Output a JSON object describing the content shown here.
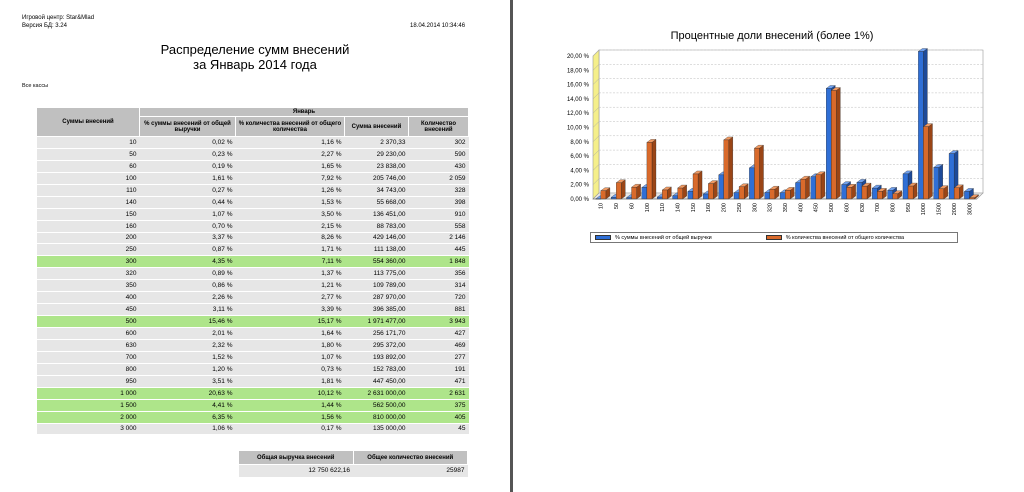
{
  "header": {
    "center": "Игровой центр: Star&Mlad",
    "db_version": "Версия БД: 3.24",
    "datetime": "18.04.2014 10:34:46"
  },
  "report": {
    "title_line1": "Распределение сумм внесений",
    "title_line2": "за Январь 2014 года",
    "scope": "Все кассы"
  },
  "table": {
    "col_sum_label": "Суммы внесений",
    "group_label": "Январь",
    "col_pct_revenue": "% суммы внесений от общей выручки",
    "col_pct_count": "% количества внесений от общего количества",
    "col_sum": "Сумма внесений",
    "col_count": "Количество внесений",
    "rows": [
      {
        "amount": "10",
        "pct_rev": "0,02 %",
        "pct_cnt": "1,16 %",
        "sum": "2 370,33",
        "count": "302",
        "hl": false
      },
      {
        "amount": "50",
        "pct_rev": "0,23 %",
        "pct_cnt": "2,27 %",
        "sum": "29 230,00",
        "count": "590",
        "hl": false
      },
      {
        "amount": "60",
        "pct_rev": "0,19 %",
        "pct_cnt": "1,65 %",
        "sum": "23 838,00",
        "count": "430",
        "hl": false
      },
      {
        "amount": "100",
        "pct_rev": "1,61 %",
        "pct_cnt": "7,92 %",
        "sum": "205 746,00",
        "count": "2 059",
        "hl": false
      },
      {
        "amount": "110",
        "pct_rev": "0,27 %",
        "pct_cnt": "1,26 %",
        "sum": "34 743,00",
        "count": "328",
        "hl": false
      },
      {
        "amount": "140",
        "pct_rev": "0,44 %",
        "pct_cnt": "1,53 %",
        "sum": "55 668,00",
        "count": "398",
        "hl": false
      },
      {
        "amount": "150",
        "pct_rev": "1,07 %",
        "pct_cnt": "3,50 %",
        "sum": "136 451,00",
        "count": "910",
        "hl": false
      },
      {
        "amount": "160",
        "pct_rev": "0,70 %",
        "pct_cnt": "2,15 %",
        "sum": "88 783,00",
        "count": "558",
        "hl": false
      },
      {
        "amount": "200",
        "pct_rev": "3,37 %",
        "pct_cnt": "8,26 %",
        "sum": "429 146,00",
        "count": "2 146",
        "hl": false
      },
      {
        "amount": "250",
        "pct_rev": "0,87 %",
        "pct_cnt": "1,71 %",
        "sum": "111 138,00",
        "count": "445",
        "hl": false
      },
      {
        "amount": "300",
        "pct_rev": "4,35 %",
        "pct_cnt": "7,11 %",
        "sum": "554 360,00",
        "count": "1 848",
        "hl": true
      },
      {
        "amount": "320",
        "pct_rev": "0,89 %",
        "pct_cnt": "1,37 %",
        "sum": "113 775,00",
        "count": "356",
        "hl": false
      },
      {
        "amount": "350",
        "pct_rev": "0,86 %",
        "pct_cnt": "1,21 %",
        "sum": "109 789,00",
        "count": "314",
        "hl": false
      },
      {
        "amount": "400",
        "pct_rev": "2,26 %",
        "pct_cnt": "2,77 %",
        "sum": "287 970,00",
        "count": "720",
        "hl": false
      },
      {
        "amount": "450",
        "pct_rev": "3,11 %",
        "pct_cnt": "3,39 %",
        "sum": "396 385,00",
        "count": "881",
        "hl": false
      },
      {
        "amount": "500",
        "pct_rev": "15,46 %",
        "pct_cnt": "15,17 %",
        "sum": "1 971 477,00",
        "count": "3 943",
        "hl": true
      },
      {
        "amount": "600",
        "pct_rev": "2,01 %",
        "pct_cnt": "1,64 %",
        "sum": "256 171,70",
        "count": "427",
        "hl": false
      },
      {
        "amount": "630",
        "pct_rev": "2,32 %",
        "pct_cnt": "1,80 %",
        "sum": "295 372,00",
        "count": "469",
        "hl": false
      },
      {
        "amount": "700",
        "pct_rev": "1,52 %",
        "pct_cnt": "1,07 %",
        "sum": "193 892,00",
        "count": "277",
        "hl": false
      },
      {
        "amount": "800",
        "pct_rev": "1,20 %",
        "pct_cnt": "0,73 %",
        "sum": "152 783,00",
        "count": "191",
        "hl": false
      },
      {
        "amount": "950",
        "pct_rev": "3,51 %",
        "pct_cnt": "1,81 %",
        "sum": "447 450,00",
        "count": "471",
        "hl": false
      },
      {
        "amount": "1 000",
        "pct_rev": "20,63 %",
        "pct_cnt": "10,12 %",
        "sum": "2 631 000,00",
        "count": "2 631",
        "hl": true
      },
      {
        "amount": "1 500",
        "pct_rev": "4,41 %",
        "pct_cnt": "1,44 %",
        "sum": "562 500,00",
        "count": "375",
        "hl": true
      },
      {
        "amount": "2 000",
        "pct_rev": "6,35 %",
        "pct_cnt": "1,56 %",
        "sum": "810 000,00",
        "count": "405",
        "hl": true
      },
      {
        "amount": "3 000",
        "pct_rev": "1,06 %",
        "pct_cnt": "0,17 %",
        "sum": "135 000,00",
        "count": "45",
        "hl": false
      }
    ]
  },
  "totals": {
    "revenue_label": "Общая выручка внесений",
    "count_label": "Общее количество внесений",
    "revenue_value": "12 750 622,16",
    "count_value": "25987"
  },
  "colors": {
    "series1": "#2f6fd6",
    "series2": "#d96a2b",
    "highlight_row": "#aee58a",
    "row": "#e6e6e6",
    "header": "#c0c0c0"
  },
  "chart_data": {
    "type": "bar",
    "title": "Процентные доли внесений (более 1%)",
    "categories": [
      "10",
      "50",
      "60",
      "100",
      "110",
      "140",
      "150",
      "160",
      "200",
      "250",
      "300",
      "320",
      "350",
      "400",
      "450",
      "500",
      "600",
      "630",
      "700",
      "800",
      "950",
      "1000",
      "1500",
      "2000",
      "3000"
    ],
    "series": [
      {
        "name": "% суммы внесений от общей выручки",
        "values": [
          0.02,
          0.23,
          0.19,
          1.61,
          0.27,
          0.44,
          1.07,
          0.7,
          3.37,
          0.87,
          4.35,
          0.89,
          0.86,
          2.26,
          3.11,
          15.46,
          2.01,
          2.32,
          1.52,
          1.2,
          3.51,
          20.63,
          4.41,
          6.35,
          1.06
        ]
      },
      {
        "name": "% количества внесений от общего количества",
        "values": [
          1.16,
          2.27,
          1.65,
          7.92,
          1.26,
          1.53,
          3.5,
          2.15,
          8.26,
          1.71,
          7.11,
          1.37,
          1.21,
          2.77,
          3.39,
          15.17,
          1.64,
          1.8,
          1.07,
          0.73,
          1.81,
          10.12,
          1.44,
          1.56,
          0.17
        ]
      }
    ],
    "y_ticks": [
      "0,00 %",
      "2,00 %",
      "4,00 %",
      "6,00 %",
      "8,00 %",
      "10,00 %",
      "12,00 %",
      "14,00 %",
      "16,00 %",
      "18,00 %",
      "20,00 %"
    ],
    "ylim": [
      0,
      20
    ],
    "grid": true,
    "legend": "bottom"
  }
}
